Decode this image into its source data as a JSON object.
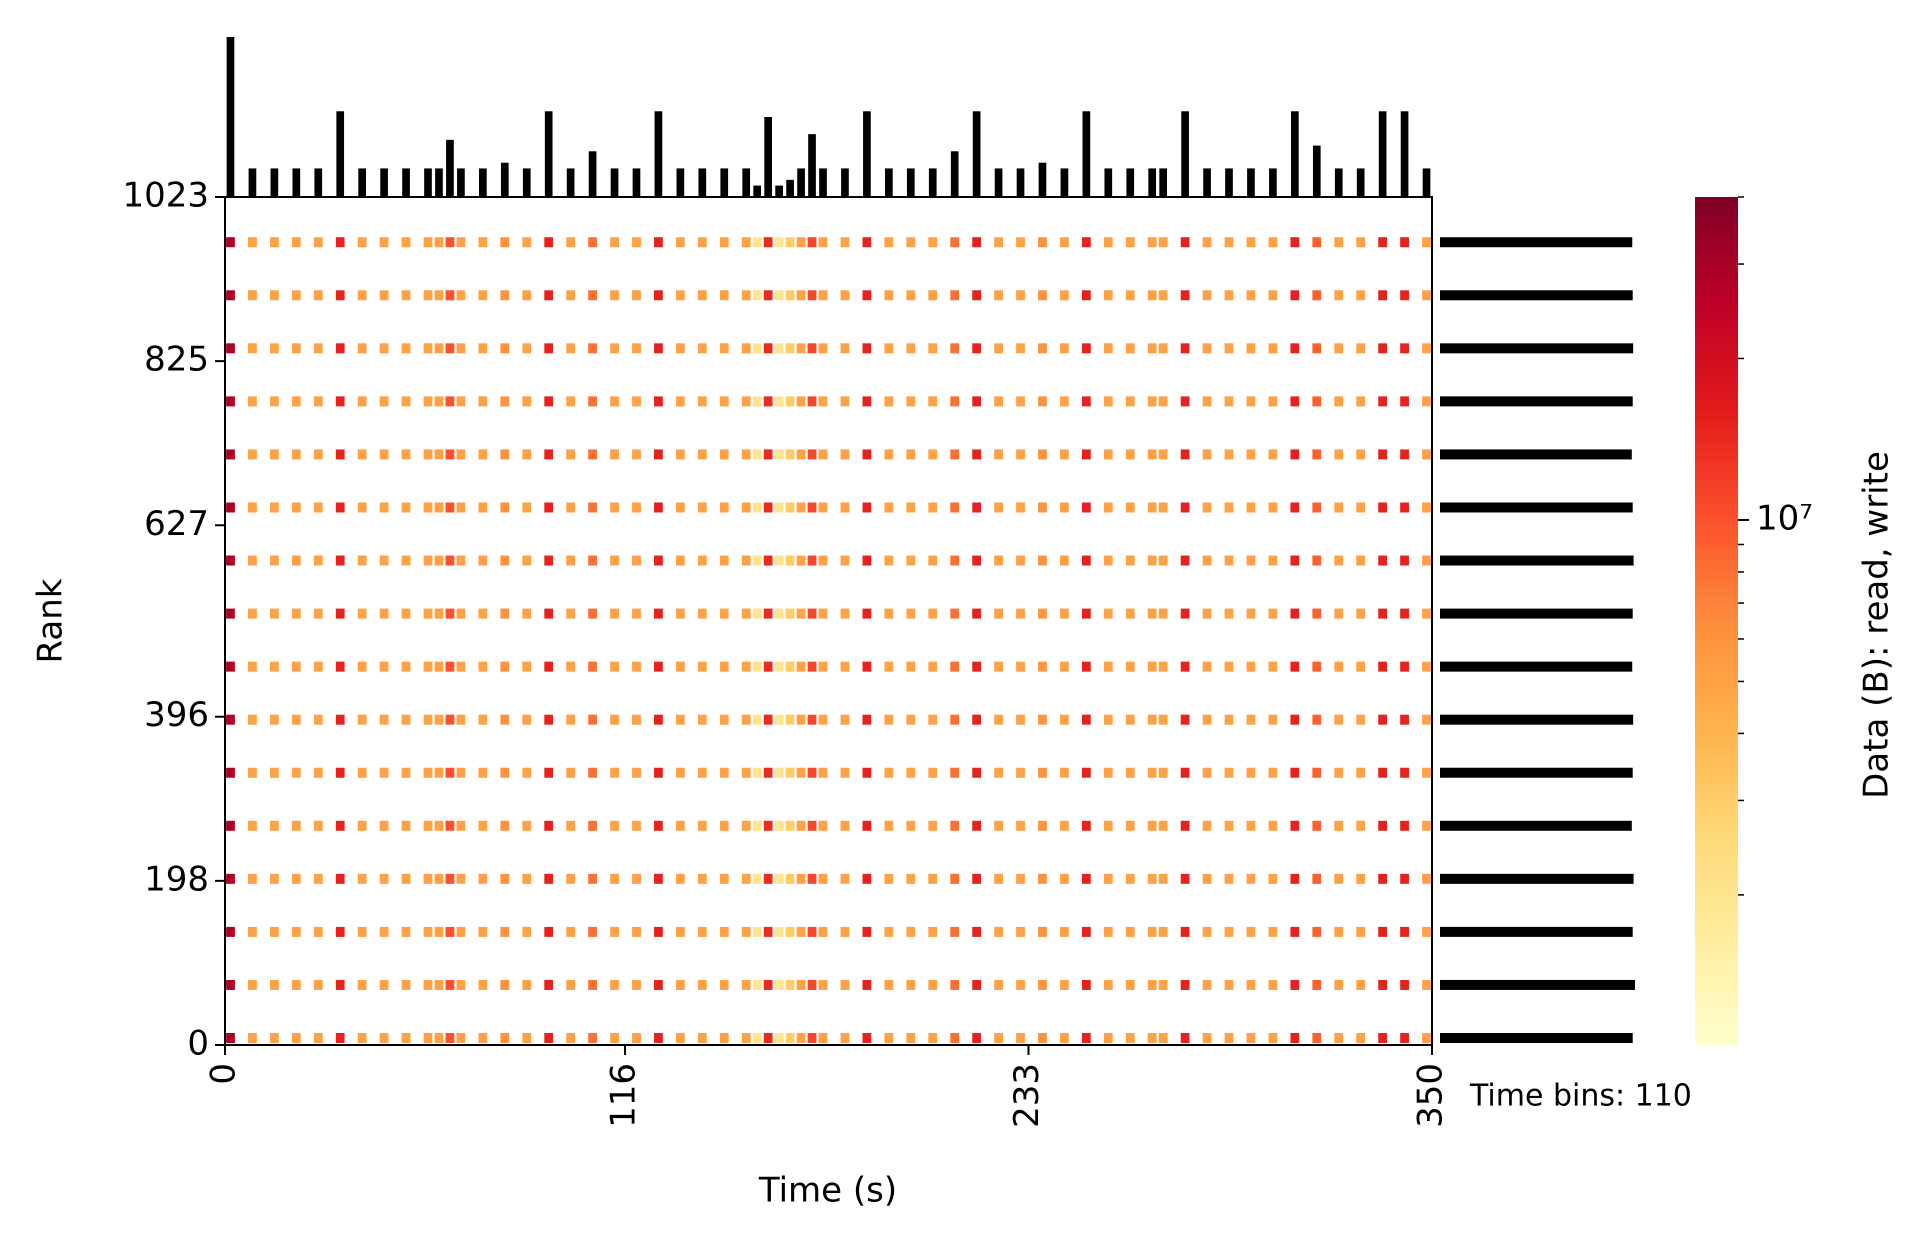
{
  "chart_data": {
    "type": "heatmap",
    "x_label": "Time (s)",
    "y_label": "Rank",
    "colorbar_label": "Data (B): read, write",
    "annotation": "Time bins: 110",
    "colormap": "YlOrRd",
    "color_scale": "log",
    "hist_color": "#000000",
    "xlim": [
      0,
      350
    ],
    "xticks": [
      0,
      116,
      233,
      350
    ],
    "ylim": [
      0,
      1023
    ],
    "yticks": [
      0,
      198,
      396,
      627,
      825,
      1023
    ],
    "clim": [
      1050000,
      40000000
    ],
    "cticks": [
      {
        "value": 10000000,
        "label": "10⁷"
      }
    ],
    "cminor_ticks": [
      2000000,
      3000000,
      4000000,
      5000000,
      6000000,
      7000000,
      8000000,
      9000000,
      20000000,
      30000000,
      40000000
    ],
    "rank_rows": [
      0,
      64,
      128,
      192,
      256,
      320,
      384,
      448,
      512,
      576,
      640,
      704,
      768,
      832,
      896,
      960
    ],
    "rank_totals": [
      420000000,
      425000000,
      420000000,
      422000000,
      418000000,
      420000000,
      421000000,
      419000000,
      420000000,
      422000000,
      420000000,
      418000000,
      420000000,
      421000000,
      420000000,
      419000000
    ],
    "bin_values": [
      28000000,
      null,
      5000000,
      null,
      5000000,
      null,
      5000000,
      null,
      5000000,
      null,
      15000000,
      null,
      5000000,
      null,
      5000000,
      null,
      5000000,
      null,
      5000000,
      5000000,
      10000000,
      5000000,
      null,
      5000000,
      null,
      6000000,
      null,
      5000000,
      null,
      15000000,
      null,
      5000000,
      null,
      8000000,
      null,
      5000000,
      null,
      5000000,
      null,
      15000000,
      null,
      5000000,
      null,
      5000000,
      null,
      5000000,
      null,
      5000000,
      2000000,
      14000000,
      2000000,
      3000000,
      5000000,
      11000000,
      5000000,
      null,
      5000000,
      null,
      15000000,
      null,
      5000000,
      null,
      5000000,
      null,
      5000000,
      null,
      8000000,
      null,
      15000000,
      null,
      5000000,
      null,
      5000000,
      null,
      6000000,
      null,
      5000000,
      null,
      15000000,
      null,
      5000000,
      null,
      5000000,
      null,
      5000000,
      5000000,
      null,
      15000000,
      null,
      5000000,
      null,
      5000000,
      null,
      5000000,
      null,
      5000000,
      null,
      15000000,
      null,
      9000000,
      null,
      5000000,
      null,
      5000000,
      null,
      15000000,
      null,
      15000000,
      null,
      5000000
    ]
  }
}
